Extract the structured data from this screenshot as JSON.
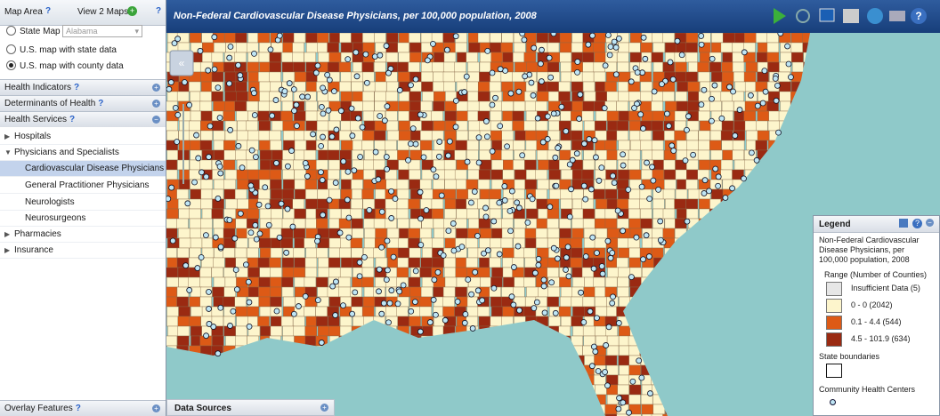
{
  "sidebar": {
    "map_area": {
      "title": "Map Area",
      "view_two_maps": "View 2 Maps",
      "options": [
        "State Map",
        "U.S. map with state data",
        "U.S. map with county data"
      ],
      "state_select": "Alabama"
    },
    "sections": [
      "Health Indicators",
      "Determinants of Health",
      "Health Services"
    ],
    "tree": [
      "Hospitals",
      "Physicians and Specialists",
      "Cardiovascular Disease Physicians",
      "General Practitioner Physicians",
      "Neurologists",
      "Neurosurgeons",
      "Pharmacies",
      "Insurance"
    ],
    "overlay": "Overlay Features"
  },
  "map": {
    "title": "Non-Federal Cardiovascular Disease Physicians, per 100,000 population, 2008",
    "data_sources": "Data Sources"
  },
  "legend": {
    "title": "Legend",
    "description": "Non-Federal Cardiovascular Disease Physicians, per 100,000 population, 2008",
    "range_title": "Range (Number of Counties)",
    "items": [
      {
        "label": "Insufficient Data (5)",
        "color": "#e6e6e6"
      },
      {
        "label": "0 - 0 (2042)",
        "color": "#fdf5cc"
      },
      {
        "label": "0.1 - 4.4 (544)",
        "color": "#dd5a16"
      },
      {
        "label": "4.5 - 101.9 (634)",
        "color": "#9a2a12"
      }
    ],
    "state_boundaries": "State boundaries",
    "health_centers": "Community Health Centers"
  }
}
